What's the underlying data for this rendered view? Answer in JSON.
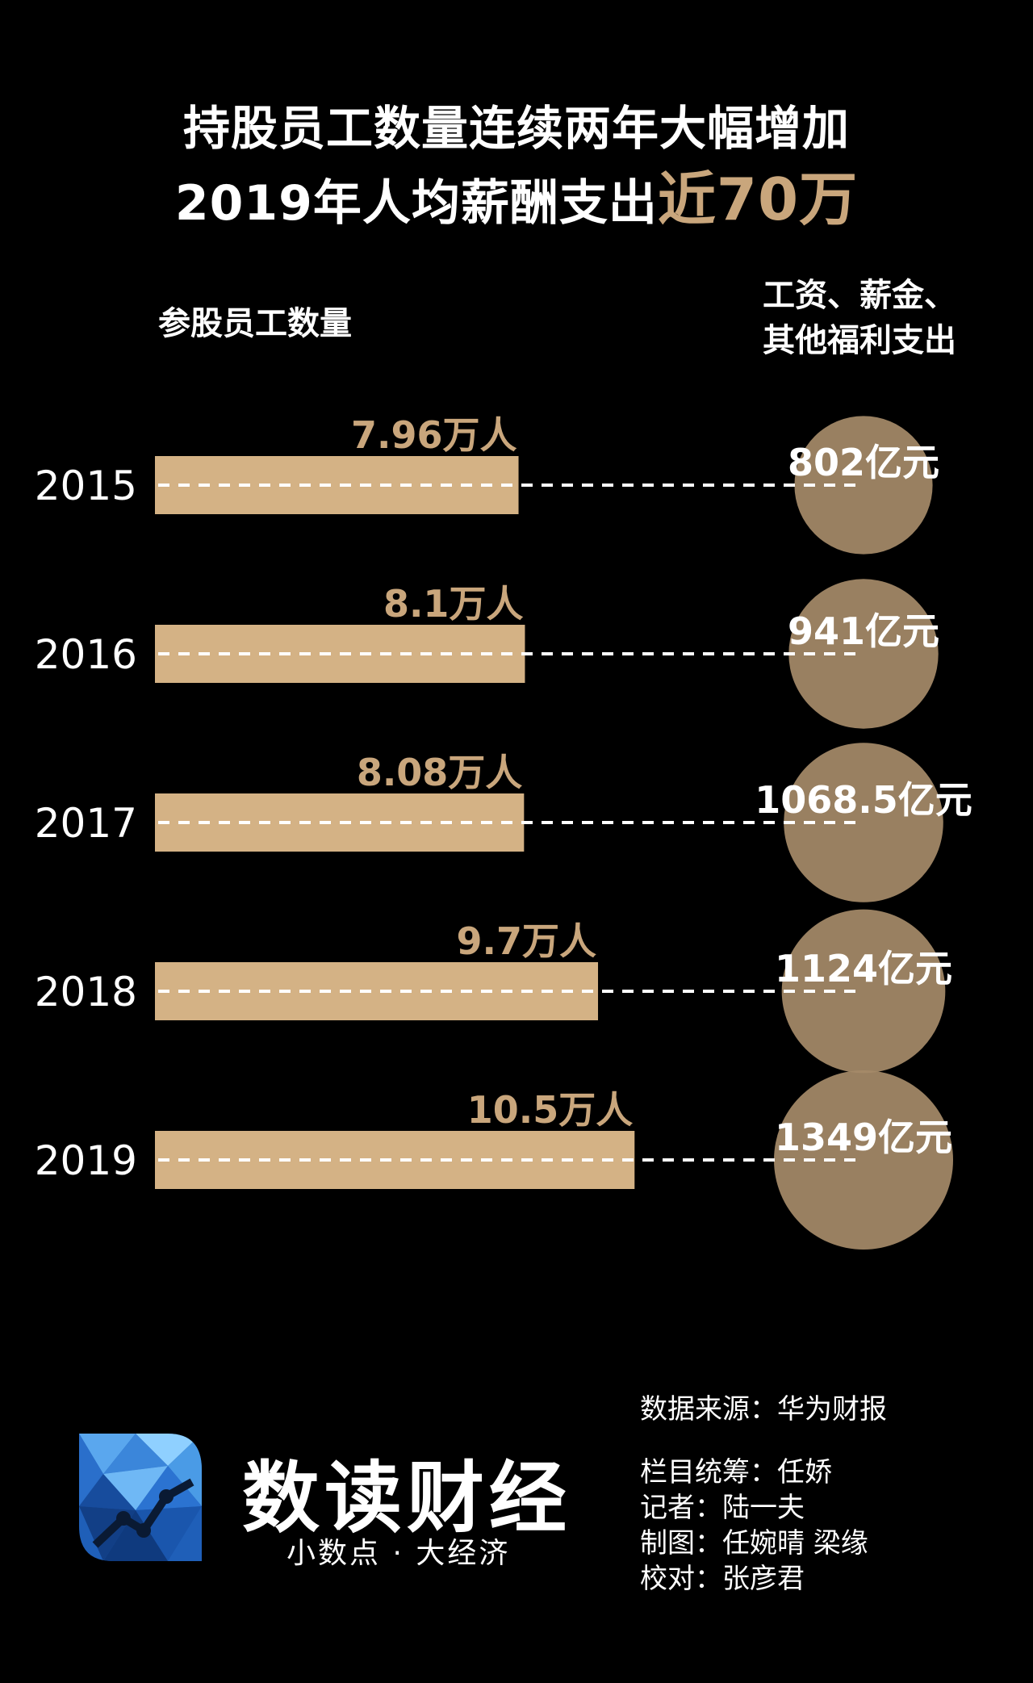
{
  "title": {
    "line1": "持股员工数量连续两年大幅增加",
    "line2_prefix": "2019年人均薪酬支出",
    "line2_highlight": "近70万"
  },
  "headers": {
    "left": "参股员工数量",
    "right_line1": "工资、薪金、",
    "right_line2": "其他福利支出"
  },
  "colors": {
    "background": "#000000",
    "bar": "#d4b285",
    "bubble": "#a58a68",
    "accent_text": "#c9a67c"
  },
  "chart_data": {
    "type": "bar",
    "categories": [
      "2015",
      "2016",
      "2017",
      "2018",
      "2019"
    ],
    "series": [
      {
        "name": "参股员工数量",
        "unit": "万人",
        "values": [
          7.96,
          8.1,
          8.08,
          9.7,
          10.5
        ],
        "labels": [
          "7.96万人",
          "8.1万人",
          "8.08万人",
          "9.7万人",
          "10.5万人"
        ]
      },
      {
        "name": "工资、薪金、其他福利支出",
        "unit": "亿元",
        "values": [
          802,
          941,
          1068.5,
          1124,
          1349
        ],
        "labels": [
          "802亿元",
          "941亿元",
          "1068.5亿元",
          "1124亿元",
          "1349亿元"
        ]
      }
    ]
  },
  "footer": {
    "source": "数据来源：华为财报",
    "credits": [
      "栏目统筹：任娇",
      "记者：陆一夫",
      "制图：任婉晴 梁缘",
      "校对：张彦君"
    ],
    "brand_name": "数读财经",
    "brand_slogan": "小数点 · 大经济",
    "logo_icon": "polygon-chart-logo-icon"
  }
}
